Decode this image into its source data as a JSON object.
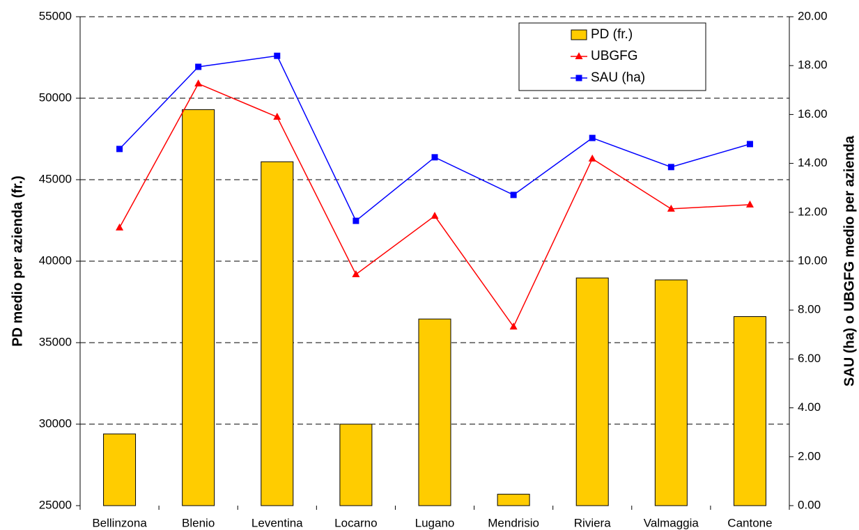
{
  "chart_data": {
    "type": "bar-line",
    "categories": [
      "Bellinzona",
      "Blenio",
      "Leventina",
      "Locarno",
      "Lugano",
      "Mendrisio",
      "Riviera",
      "Valmaggia",
      "Cantone"
    ],
    "series": [
      {
        "name": "PD (fr.)",
        "type": "bar",
        "axis": "y",
        "color": "#ffcc00",
        "values": [
          29400,
          49300,
          46100,
          30000,
          36450,
          25700,
          38970,
          38850,
          36600
        ]
      },
      {
        "name": "UBGFG",
        "type": "line",
        "axis": "y2",
        "marker": "triangle",
        "color": "#ff0000",
        "values": [
          11.37,
          17.26,
          15.9,
          9.46,
          11.85,
          7.32,
          14.19,
          12.14,
          12.31
        ]
      },
      {
        "name": "SAU (ha)",
        "type": "line",
        "axis": "y2",
        "marker": "square",
        "color": "#0000ff",
        "values": [
          14.59,
          17.95,
          18.4,
          11.65,
          14.25,
          12.71,
          15.04,
          13.85,
          14.79
        ]
      }
    ],
    "ylabel": "PD medio per azienda (fr.)",
    "y2label": "SAU (ha) o UBGFG medio per azienda",
    "ylim": [
      25000,
      55000
    ],
    "yticks": [
      25000,
      30000,
      35000,
      40000,
      45000,
      50000,
      55000
    ],
    "y2lim": [
      0,
      20
    ],
    "y2ticks": [
      {
        "value": 0,
        "label": "0.00"
      },
      {
        "value": 2,
        "label": "2.00"
      },
      {
        "value": 4,
        "label": "4.00"
      },
      {
        "value": 6,
        "label": "6.00"
      },
      {
        "value": 8,
        "label": "8.00"
      },
      {
        "value": 10,
        "label": "10.00"
      },
      {
        "value": 12,
        "label": "12.00"
      },
      {
        "value": 14,
        "label": "14.00"
      },
      {
        "value": 16,
        "label": "16.00"
      },
      {
        "value": 18,
        "label": "18.00"
      },
      {
        "value": 20,
        "label": "20.00"
      }
    ],
    "grid": true,
    "legend": "top-right"
  }
}
